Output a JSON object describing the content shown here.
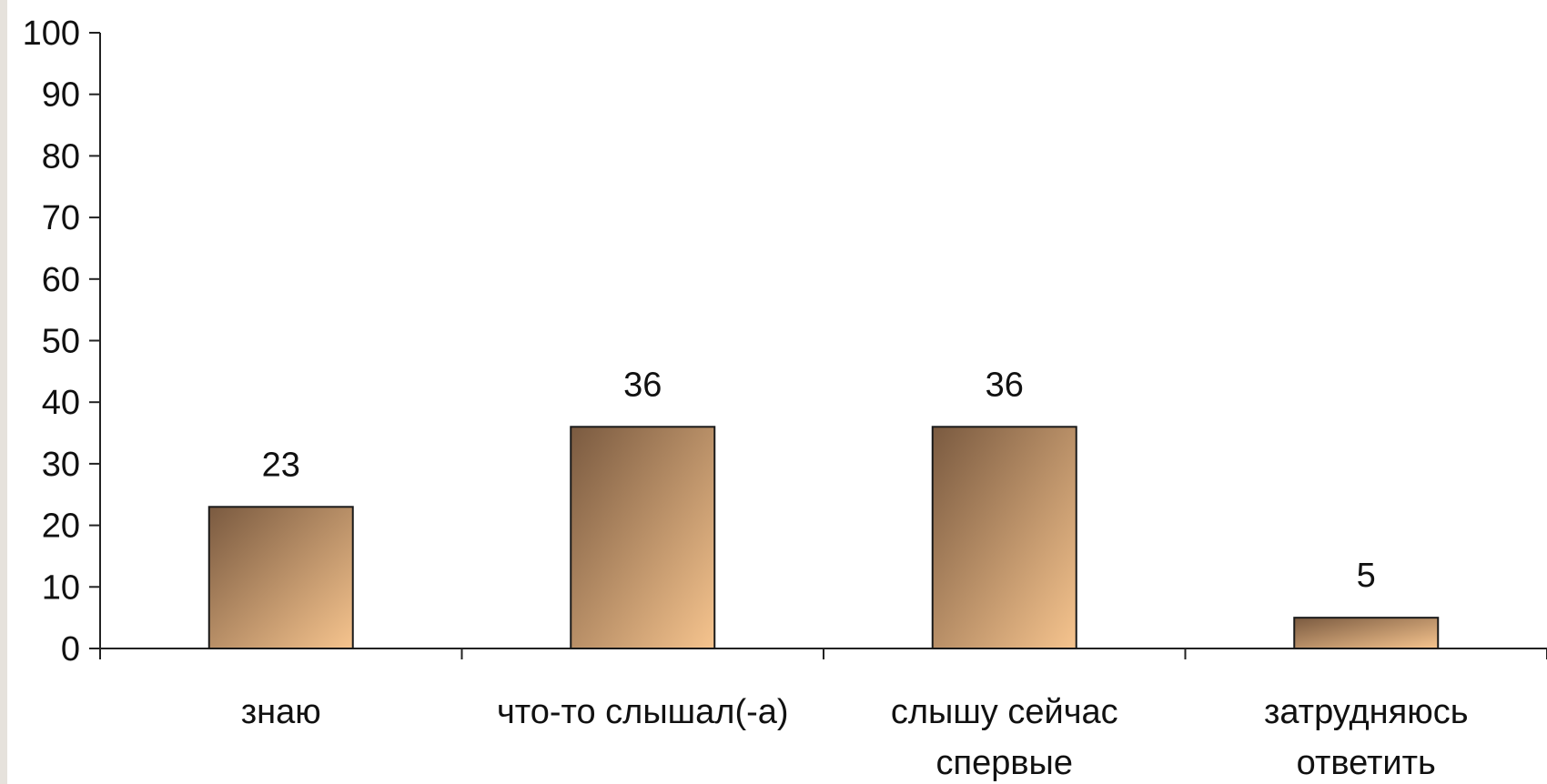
{
  "chart_data": {
    "type": "bar",
    "categories": [
      [
        "знаю"
      ],
      [
        "что-то слышал(-а)"
      ],
      [
        "слышу сейчас",
        "спервые"
      ],
      [
        "затрудняюсь",
        "ответить"
      ]
    ],
    "values": [
      23,
      36,
      36,
      5
    ],
    "data_labels": [
      "23",
      "36",
      "36",
      "5"
    ],
    "ylim": [
      0,
      100
    ],
    "yticks": [
      "0",
      "10",
      "20",
      "30",
      "40",
      "50",
      "60",
      "70",
      "80",
      "90",
      "100"
    ],
    "title": "",
    "xlabel": "",
    "ylabel": "",
    "grid": false,
    "legend": "none",
    "bar_gradient": [
      "#7a5a40",
      "#f6c48e"
    ],
    "bar_outline": "#1a1a1a",
    "axis_color": "#222222"
  }
}
